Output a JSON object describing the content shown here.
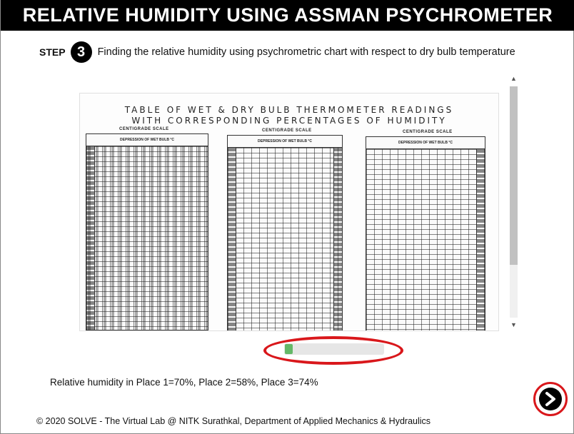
{
  "header": {
    "title": "RELATIVE HUMIDITY USING ASSMAN PSYCHROMETER"
  },
  "step": {
    "label": "STEP",
    "number": "3",
    "text": "Finding the relative humidity using psychrometric chart with respect to dry bulb temperature"
  },
  "table_image": {
    "title_line1": "TABLE OF WET & DRY BULB THERMOMETER READINGS",
    "title_line2": "WITH CORRESPONDING PERCENTAGES OF HUMIDITY",
    "scale_label": "CENTIGRADE SCALE",
    "panels": [
      {
        "header": "DEPRESSION OF WET BULB °C"
      },
      {
        "header": "DEPRESSION OF WET BULB °C"
      },
      {
        "header": "DEPRESSION OF WET BULB °C"
      }
    ]
  },
  "scrollbars": {
    "vertical_position": 0.0,
    "horizontal_position": 0.0
  },
  "result": {
    "text": "Relative humidity in Place 1=70%, Place 2=58%, Place 3=74%"
  },
  "footer": {
    "text": "© 2020 SOLVE - The Virtual Lab @ NITK Surathkal, Department of Applied Mechanics & Hydraulics"
  },
  "icons": {
    "next": "next-arrow-icon",
    "scroll_up": "chevron-up-icon",
    "scroll_down": "chevron-down-icon"
  },
  "colors": {
    "title_bar": "#000000",
    "highlight": "#d9171b",
    "slider_thumb": "#4caf50"
  }
}
